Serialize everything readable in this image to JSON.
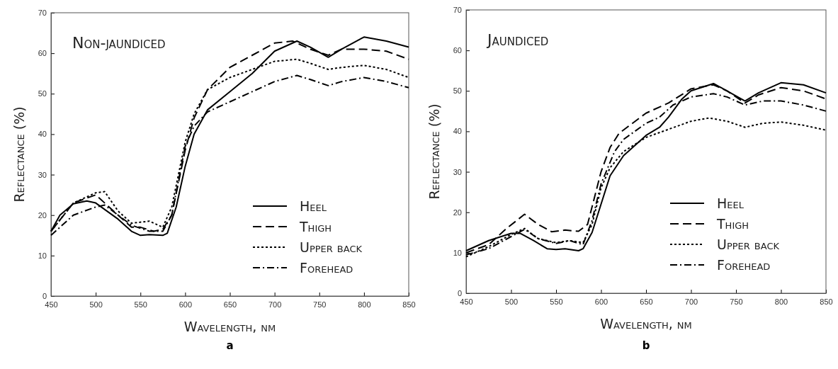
{
  "chart_data": [
    {
      "type": "line",
      "title": "Non-jaundiced",
      "xlabel": "Wavelength, nm",
      "ylabel": "Reflectance (%)",
      "xlim": [
        450,
        850
      ],
      "xticks": [
        450,
        500,
        550,
        600,
        650,
        700,
        750,
        800,
        850
      ],
      "ylim": [
        0,
        70
      ],
      "yticks": [
        0,
        10,
        20,
        30,
        40,
        50,
        60,
        70
      ],
      "legend": "bottom right",
      "annotations": [
        "a"
      ],
      "series": [
        {
          "name": "Heel",
          "color": "#000000",
          "line_style": "solid",
          "x": [
            450,
            460,
            475,
            490,
            500,
            525,
            540,
            550,
            560,
            575,
            580,
            590,
            600,
            610,
            625,
            650,
            675,
            700,
            725,
            740,
            760,
            775,
            800,
            825,
            850
          ],
          "values": [
            16,
            20,
            22.8,
            23.5,
            23,
            19,
            16,
            15,
            15.2,
            15,
            15.5,
            22,
            32,
            40,
            46,
            50.5,
            55,
            60.5,
            63,
            61.5,
            59,
            61,
            64,
            63,
            61.5
          ]
        },
        {
          "name": "Thigh",
          "color": "#000000",
          "line_style": "dashed",
          "x": [
            450,
            475,
            500,
            525,
            540,
            550,
            565,
            575,
            585,
            600,
            610,
            625,
            650,
            675,
            700,
            720,
            740,
            760,
            775,
            800,
            825,
            850
          ],
          "values": [
            16,
            23,
            25,
            20,
            17,
            17,
            16,
            16.5,
            20,
            36,
            44,
            51,
            56.5,
            59.5,
            62.5,
            63,
            61,
            59.5,
            61,
            61,
            60.5,
            58.5
          ]
        },
        {
          "name": "Upper back",
          "color": "#000000",
          "line_style": "dotted",
          "x": [
            450,
            475,
            500,
            510,
            525,
            540,
            560,
            575,
            585,
            600,
            610,
            625,
            650,
            675,
            700,
            725,
            740,
            760,
            775,
            800,
            825,
            850
          ],
          "values": [
            16,
            23,
            25.5,
            25.8,
            21,
            18,
            18.5,
            17,
            22,
            38,
            45,
            51,
            54,
            56,
            58,
            58.5,
            57.5,
            56,
            56.5,
            57,
            56,
            54
          ]
        },
        {
          "name": "Forehead",
          "color": "#000000",
          "line_style": "dashdot",
          "x": [
            450,
            460,
            475,
            500,
            510,
            525,
            540,
            560,
            575,
            585,
            600,
            610,
            625,
            650,
            675,
            700,
            725,
            740,
            760,
            775,
            800,
            825,
            850
          ],
          "values": [
            15,
            17,
            20,
            22,
            22.5,
            20,
            17.5,
            16,
            16,
            20,
            37,
            42,
            45.5,
            48,
            50.5,
            53,
            54.5,
            53.5,
            52,
            53,
            54,
            53,
            51.5
          ]
        }
      ]
    },
    {
      "type": "line",
      "title": "Jaundiced",
      "xlabel": "Wavelength, nm",
      "ylabel": "Reflectance (%)",
      "xlim": [
        450,
        850
      ],
      "xticks": [
        450,
        500,
        550,
        600,
        650,
        700,
        750,
        800,
        850
      ],
      "ylim": [
        0,
        70
      ],
      "yticks": [
        0,
        10,
        20,
        30,
        40,
        50,
        60,
        70
      ],
      "legend": "bottom right",
      "annotations": [
        "b"
      ],
      "series": [
        {
          "name": "Heel",
          "color": "#000000",
          "line_style": "solid",
          "x": [
            450,
            475,
            500,
            510,
            525,
            540,
            550,
            560,
            575,
            580,
            590,
            600,
            610,
            625,
            650,
            665,
            675,
            690,
            700,
            725,
            740,
            760,
            775,
            800,
            825,
            850
          ],
          "values": [
            10.5,
            13,
            14.8,
            14.8,
            13,
            11,
            10.8,
            11,
            10.5,
            11,
            15,
            22,
            29,
            34,
            39,
            41,
            43.5,
            48,
            50,
            51.8,
            50,
            47.5,
            49.5,
            52,
            51.5,
            49.5
          ]
        },
        {
          "name": "Thigh",
          "color": "#000000",
          "line_style": "dashed",
          "x": [
            450,
            475,
            495,
            515,
            530,
            545,
            560,
            575,
            585,
            600,
            610,
            620,
            650,
            675,
            700,
            725,
            740,
            760,
            775,
            800,
            825,
            850
          ],
          "values": [
            10,
            12,
            16,
            19.5,
            17,
            15.2,
            15.6,
            15.3,
            17,
            30,
            36,
            39.5,
            44.5,
            47,
            50.5,
            51.5,
            50,
            47,
            49,
            50.8,
            50,
            48
          ]
        },
        {
          "name": "Upper back",
          "color": "#000000",
          "line_style": "dotted",
          "x": [
            450,
            475,
            500,
            515,
            530,
            550,
            565,
            580,
            590,
            600,
            610,
            625,
            650,
            675,
            700,
            720,
            740,
            760,
            780,
            800,
            825,
            850
          ],
          "values": [
            9,
            11.5,
            14.5,
            16,
            13.5,
            12.5,
            13,
            12.5,
            17,
            26,
            31,
            35,
            38.5,
            40.5,
            42.5,
            43.3,
            42.5,
            41,
            42,
            42.3,
            41.5,
            40.3
          ]
        },
        {
          "name": "Forehead",
          "color": "#000000",
          "line_style": "dashdot",
          "x": [
            450,
            475,
            500,
            515,
            530,
            550,
            565,
            580,
            590,
            600,
            615,
            625,
            650,
            665,
            680,
            700,
            725,
            740,
            760,
            780,
            800,
            825,
            850
          ],
          "values": [
            9.5,
            11,
            14,
            15.8,
            13.5,
            12.3,
            13,
            12,
            18,
            27,
            35,
            38,
            42,
            43.5,
            46.5,
            48.5,
            49.3,
            48.5,
            46.5,
            47.5,
            47.5,
            46.5,
            45
          ]
        }
      ]
    }
  ]
}
